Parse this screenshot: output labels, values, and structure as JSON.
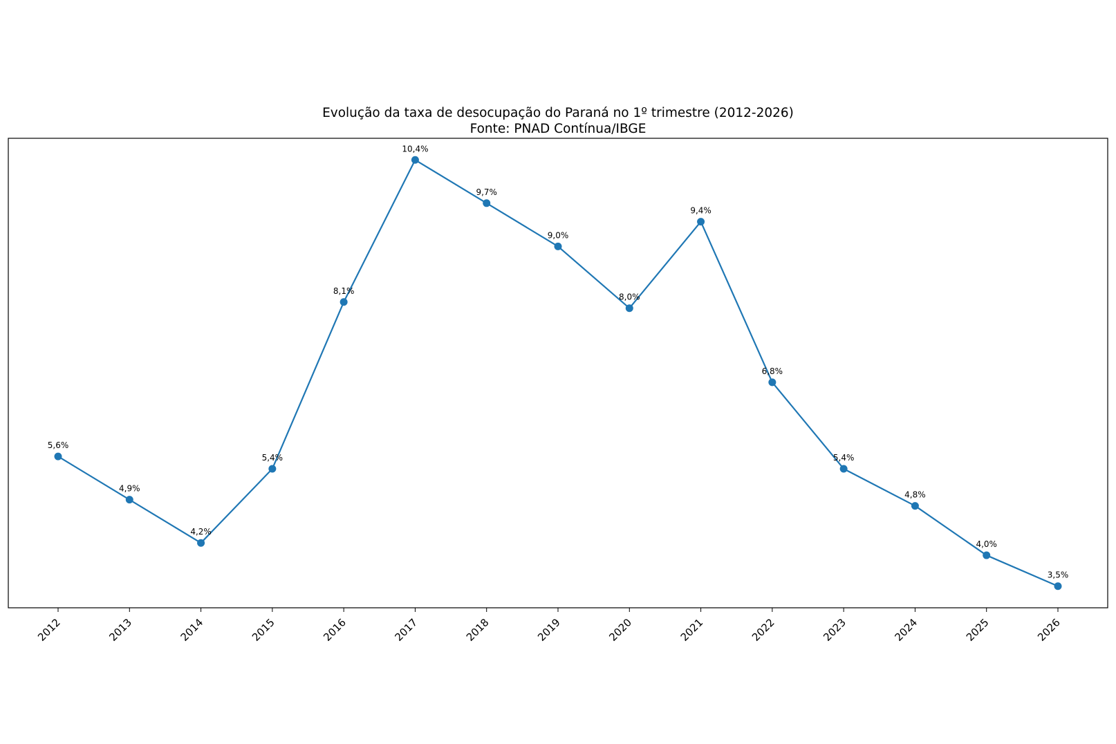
{
  "chart_data": {
    "type": "line",
    "title": "Evolução da taxa de desocupação do Paraná no 1º trimestre (2012-2026)",
    "subtitle": "Fonte: PNAD Contínua/IBGE",
    "categories": [
      "2012",
      "2013",
      "2014",
      "2015",
      "2016",
      "2017",
      "2018",
      "2019",
      "2020",
      "2021",
      "2022",
      "2023",
      "2024",
      "2025",
      "2026"
    ],
    "series": [
      {
        "values": [
          5.6,
          4.9,
          4.2,
          5.4,
          8.1,
          10.4,
          9.7,
          9.0,
          8.0,
          9.4,
          6.8,
          5.4,
          4.8,
          4.0,
          3.5
        ],
        "labels": [
          "5,6%",
          "4,9%",
          "4,2%",
          "5,4%",
          "8,1%",
          "10,4%",
          "9,7%",
          "9,0%",
          "8,0%",
          "9,4%",
          "6,8%",
          "5,4%",
          "4,8%",
          "4,0%",
          "3,5%"
        ],
        "color": "#1f77b4"
      }
    ],
    "xlabel": "",
    "ylabel": "",
    "ylim": [
      3.15,
      10.75
    ],
    "y_ticks_visible": false,
    "grid": false,
    "markers": "circle"
  }
}
